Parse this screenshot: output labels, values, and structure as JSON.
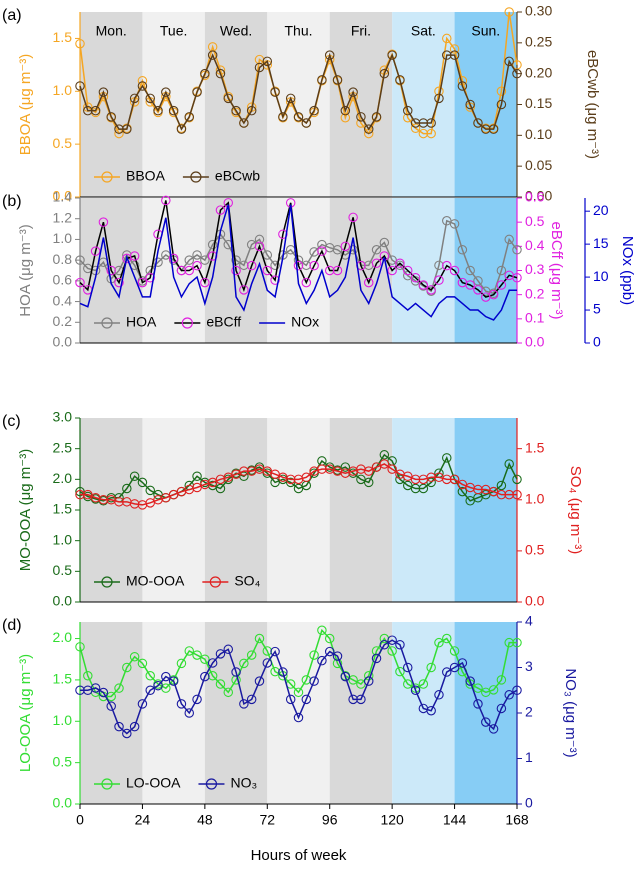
{
  "chart_data": [
    {
      "type": "line",
      "panel_label": "(a)",
      "ylabel": "BBOA (μg m⁻³)",
      "y2label": "eBCwb (μg m⁻³)",
      "days": [
        "Mon.",
        "Tue.",
        "Wed.",
        "Thu.",
        "Fri.",
        "Sat.",
        "Sun."
      ],
      "legend": "lower left",
      "xlim": [
        0,
        168
      ],
      "x": [
        0,
        3,
        6,
        9,
        12,
        15,
        18,
        21,
        24,
        27,
        30,
        33,
        36,
        39,
        42,
        45,
        48,
        51,
        54,
        57,
        60,
        63,
        66,
        69,
        72,
        75,
        78,
        81,
        84,
        87,
        90,
        93,
        96,
        99,
        102,
        105,
        108,
        111,
        114,
        117,
        120,
        123,
        126,
        129,
        132,
        135,
        138,
        141,
        144,
        147,
        150,
        153,
        156,
        159,
        162,
        165,
        168
      ],
      "ylim": [
        0,
        1.75
      ],
      "yticks": [
        {
          "value": 0,
          "label": "0.0"
        },
        0.5,
        {
          "value": 1,
          "label": "1.0"
        },
        1.5
      ],
      "y2lim": [
        0,
        0.3
      ],
      "y2ticks": [
        {
          "value": 0,
          "label": "0.00"
        },
        0.05,
        {
          "value": 0.1,
          "label": "0.10"
        },
        0.15,
        {
          "value": 0.2,
          "label": "0.20"
        },
        0.25,
        {
          "value": 0.3,
          "label": "0.30"
        }
      ],
      "series": [
        {
          "name": "BBOA",
          "color": "#f5a623",
          "marker": "circle",
          "axis": "y",
          "values": [
            1.45,
            0.85,
            0.8,
            0.95,
            0.75,
            0.6,
            0.65,
            0.9,
            1.1,
            0.9,
            0.8,
            0.95,
            0.8,
            0.65,
            0.75,
            1.0,
            1.15,
            1.42,
            1.2,
            0.95,
            0.8,
            0.7,
            0.85,
            1.3,
            1.25,
            1.0,
            0.75,
            0.9,
            0.75,
            0.7,
            0.8,
            1.1,
            1.3,
            1.1,
            0.75,
            0.95,
            0.7,
            0.6,
            0.75,
            1.2,
            1.35,
            1.1,
            0.75,
            0.65,
            0.6,
            0.6,
            1.0,
            1.5,
            1.4,
            1.1,
            0.85,
            0.7,
            0.65,
            0.65,
            1.0,
            1.75,
            1.25
          ]
        },
        {
          "name": "eBCwb",
          "color": "#5a3d1a",
          "marker": "circle",
          "axis": "y2",
          "values": [
            0.18,
            0.14,
            0.14,
            0.17,
            0.13,
            0.11,
            0.11,
            0.16,
            0.18,
            0.16,
            0.14,
            0.17,
            0.14,
            0.11,
            0.13,
            0.17,
            0.2,
            0.23,
            0.2,
            0.16,
            0.14,
            0.12,
            0.14,
            0.21,
            0.22,
            0.17,
            0.13,
            0.16,
            0.13,
            0.12,
            0.14,
            0.19,
            0.23,
            0.19,
            0.14,
            0.17,
            0.13,
            0.11,
            0.13,
            0.2,
            0.23,
            0.19,
            0.14,
            0.12,
            0.12,
            0.12,
            0.16,
            0.23,
            0.23,
            0.18,
            0.15,
            0.12,
            0.11,
            0.11,
            0.15,
            0.22,
            0.2
          ]
        }
      ]
    },
    {
      "type": "line",
      "panel_label": "(b)",
      "ylabel": "HOA (μg m⁻³)",
      "y2label": "eBCff (μg m⁻³)",
      "y3label": "NOx (ppb)",
      "legend": "lower left",
      "xlim": [
        0,
        168
      ],
      "x": [
        0,
        3,
        6,
        9,
        12,
        15,
        18,
        21,
        24,
        27,
        30,
        33,
        36,
        39,
        42,
        45,
        48,
        51,
        54,
        57,
        60,
        63,
        66,
        69,
        72,
        75,
        78,
        81,
        84,
        87,
        90,
        93,
        96,
        99,
        102,
        105,
        108,
        111,
        114,
        117,
        120,
        123,
        126,
        129,
        132,
        135,
        138,
        141,
        144,
        147,
        150,
        153,
        156,
        159,
        162,
        165,
        168
      ],
      "ylim": [
        0,
        1.4
      ],
      "yticks": [
        {
          "value": 0,
          "label": "0.0"
        },
        0.2,
        0.4,
        0.6,
        0.8,
        {
          "value": 1,
          "label": "1.0"
        },
        1.2,
        1.4
      ],
      "y2lim": [
        0,
        0.6
      ],
      "y2ticks": [
        {
          "value": 0,
          "label": "0.0"
        },
        0.1,
        0.2,
        0.3,
        0.4,
        0.5,
        0.6
      ],
      "y3lim": [
        0,
        22
      ],
      "y3ticks": [
        0,
        5,
        10,
        15,
        20
      ],
      "series": [
        {
          "name": "HOA",
          "color": "#808080",
          "marker": "circle",
          "axis": "y",
          "values": [
            0.8,
            0.72,
            0.7,
            0.78,
            0.62,
            0.7,
            0.85,
            0.75,
            0.6,
            0.7,
            0.78,
            0.85,
            0.8,
            0.7,
            0.8,
            0.85,
            0.8,
            0.95,
            1.05,
            0.95,
            0.8,
            0.75,
            0.95,
            1.0,
            0.85,
            0.75,
            0.85,
            0.9,
            0.8,
            0.75,
            0.88,
            0.95,
            0.92,
            0.9,
            0.85,
            0.9,
            0.75,
            0.75,
            0.9,
            0.97,
            0.8,
            0.75,
            0.65,
            0.6,
            0.55,
            0.5,
            0.75,
            1.18,
            1.15,
            0.9,
            0.7,
            0.6,
            0.5,
            0.48,
            0.7,
            1.0,
            0.9
          ]
        },
        {
          "name": "eBCff",
          "color": "#e020e0",
          "line_color": "#000000",
          "marker": "circle",
          "axis": "y2",
          "values": [
            0.25,
            0.22,
            0.38,
            0.5,
            0.3,
            0.25,
            0.35,
            0.36,
            0.25,
            0.27,
            0.45,
            0.59,
            0.35,
            0.3,
            0.3,
            0.32,
            0.25,
            0.36,
            0.55,
            0.58,
            0.3,
            0.22,
            0.32,
            0.4,
            0.3,
            0.26,
            0.45,
            0.58,
            0.32,
            0.25,
            0.32,
            0.38,
            0.3,
            0.3,
            0.4,
            0.52,
            0.32,
            0.25,
            0.33,
            0.36,
            0.3,
            0.33,
            0.3,
            0.27,
            0.24,
            0.22,
            0.26,
            0.32,
            0.3,
            0.25,
            0.24,
            0.22,
            0.19,
            0.2,
            0.24,
            0.28,
            0.27
          ]
        },
        {
          "name": "NOx",
          "color": "#0000cc",
          "axis": "y3",
          "values": [
            6,
            5.5,
            10,
            16,
            9,
            7,
            13,
            10,
            7,
            7,
            14,
            19,
            10,
            7,
            9,
            10,
            6,
            10,
            17,
            21,
            7,
            5,
            9,
            12,
            8,
            7,
            13,
            21,
            9,
            6,
            8,
            11,
            7,
            8,
            10,
            16,
            8,
            6,
            9,
            13,
            7,
            6,
            5,
            6,
            5,
            4,
            6,
            7,
            7,
            6,
            5,
            5,
            4,
            3.5,
            5,
            8,
            8
          ]
        }
      ]
    },
    {
      "type": "line",
      "panel_label": "(c)",
      "ylabel": "MO-OOA (μg m⁻³)",
      "y2label": "SO₄ (μg m⁻³)",
      "legend": "lower left",
      "xlim": [
        0,
        168
      ],
      "x": [
        0,
        3,
        6,
        9,
        12,
        15,
        18,
        21,
        24,
        27,
        30,
        33,
        36,
        39,
        42,
        45,
        48,
        51,
        54,
        57,
        60,
        63,
        66,
        69,
        72,
        75,
        78,
        81,
        84,
        87,
        90,
        93,
        96,
        99,
        102,
        105,
        108,
        111,
        114,
        117,
        120,
        123,
        126,
        129,
        132,
        135,
        138,
        141,
        144,
        147,
        150,
        153,
        156,
        159,
        162,
        165,
        168
      ],
      "ylim": [
        0,
        3
      ],
      "yticks": [
        {
          "value": 0,
          "label": "0.0"
        },
        0.5,
        {
          "value": 1,
          "label": "1.0"
        },
        1.5,
        {
          "value": 2,
          "label": "2.0"
        },
        2.5,
        {
          "value": 3,
          "label": "3.0"
        }
      ],
      "y2lim": [
        0,
        1.8
      ],
      "y2ticks": [
        {
          "value": 0,
          "label": "0.0"
        },
        0.5,
        {
          "value": 1,
          "label": "1.0"
        },
        1.5
      ],
      "series": [
        {
          "name": "MO-OOA",
          "color": "#1a6b1a",
          "marker": "circle",
          "axis": "y",
          "values": [
            1.8,
            1.72,
            1.68,
            1.65,
            1.7,
            1.7,
            1.85,
            2.05,
            1.95,
            1.82,
            1.75,
            1.7,
            1.75,
            1.8,
            1.9,
            2.05,
            1.95,
            1.9,
            1.85,
            2.0,
            2.1,
            2.05,
            2.15,
            2.2,
            2.1,
            1.95,
            2.0,
            1.95,
            1.85,
            1.9,
            2.1,
            2.3,
            2.2,
            2.15,
            2.2,
            2.1,
            2.0,
            1.95,
            2.2,
            2.4,
            2.3,
            2.0,
            1.9,
            1.85,
            1.85,
            1.95,
            2.1,
            2.35,
            2.0,
            1.8,
            1.65,
            1.7,
            1.75,
            1.8,
            1.9,
            2.25,
            2.0
          ]
        },
        {
          "name": "SO₄",
          "color": "#e02020",
          "marker": "circle",
          "axis": "y2",
          "values": [
            1.05,
            1.05,
            1.02,
            1.0,
            1.0,
            0.98,
            0.98,
            0.96,
            0.95,
            0.97,
            1.0,
            1.02,
            1.05,
            1.08,
            1.1,
            1.12,
            1.15,
            1.17,
            1.2,
            1.22,
            1.25,
            1.28,
            1.28,
            1.3,
            1.28,
            1.25,
            1.22,
            1.2,
            1.2,
            1.22,
            1.28,
            1.3,
            1.3,
            1.28,
            1.26,
            1.28,
            1.3,
            1.28,
            1.32,
            1.35,
            1.3,
            1.25,
            1.23,
            1.2,
            1.2,
            1.22,
            1.22,
            1.2,
            1.2,
            1.15,
            1.12,
            1.1,
            1.1,
            1.08,
            1.05,
            1.05,
            1.05
          ]
        }
      ]
    },
    {
      "type": "line",
      "panel_label": "(d)",
      "ylabel": "LO-OOA (μg m⁻³)",
      "y2label": "NO₃ (μg m⁻³)",
      "xlabel": "Hours of week",
      "legend": "lower left",
      "xlim": [
        0,
        168
      ],
      "xticks": [
        0,
        24,
        48,
        72,
        96,
        120,
        144,
        168
      ],
      "x": [
        0,
        3,
        6,
        9,
        12,
        15,
        18,
        21,
        24,
        27,
        30,
        33,
        36,
        39,
        42,
        45,
        48,
        51,
        54,
        57,
        60,
        63,
        66,
        69,
        72,
        75,
        78,
        81,
        84,
        87,
        90,
        93,
        96,
        99,
        102,
        105,
        108,
        111,
        114,
        117,
        120,
        123,
        126,
        129,
        132,
        135,
        138,
        141,
        144,
        147,
        150,
        153,
        156,
        159,
        162,
        165,
        168
      ],
      "ylim": [
        0,
        2.2
      ],
      "yticks": [
        {
          "value": 0,
          "label": "0.0"
        },
        0.5,
        {
          "value": 1,
          "label": "1.0"
        },
        1.5,
        {
          "value": 2,
          "label": "2.0"
        }
      ],
      "y2lim": [
        0,
        4
      ],
      "y2ticks": [
        0,
        1,
        2,
        3,
        4
      ],
      "series": [
        {
          "name": "LO-OOA",
          "color": "#33dd33",
          "marker": "circle",
          "axis": "y",
          "values": [
            1.9,
            1.55,
            1.35,
            1.3,
            1.3,
            1.4,
            1.65,
            1.78,
            1.7,
            1.55,
            1.45,
            1.4,
            1.5,
            1.7,
            1.85,
            1.8,
            1.75,
            1.55,
            1.45,
            1.35,
            1.5,
            1.7,
            1.8,
            2.0,
            1.85,
            1.6,
            1.55,
            1.45,
            1.35,
            1.5,
            1.8,
            2.1,
            2.0,
            1.7,
            1.55,
            1.5,
            1.45,
            1.55,
            1.85,
            2.0,
            1.85,
            1.6,
            1.45,
            1.4,
            1.45,
            1.65,
            1.95,
            2.0,
            1.85,
            1.6,
            1.45,
            1.4,
            1.35,
            1.38,
            1.5,
            1.95,
            1.95
          ]
        },
        {
          "name": "NO₃",
          "color": "#1a1aa0",
          "marker": "circle",
          "axis": "y2",
          "values": [
            2.5,
            2.5,
            2.55,
            2.45,
            2.15,
            1.7,
            1.55,
            1.7,
            2.2,
            2.5,
            2.6,
            2.8,
            2.7,
            2.2,
            2.0,
            2.3,
            2.8,
            3.1,
            3.3,
            3.4,
            2.9,
            2.2,
            2.3,
            2.7,
            3.1,
            3.35,
            2.9,
            2.3,
            1.9,
            2.3,
            2.7,
            3.15,
            3.35,
            3.25,
            2.8,
            2.3,
            2.3,
            2.7,
            3.2,
            3.5,
            3.6,
            3.5,
            3.0,
            2.5,
            2.1,
            2.05,
            2.4,
            2.9,
            3.0,
            3.1,
            2.7,
            2.2,
            1.8,
            1.65,
            2.1,
            2.4,
            2.5
          ]
        }
      ]
    }
  ]
}
